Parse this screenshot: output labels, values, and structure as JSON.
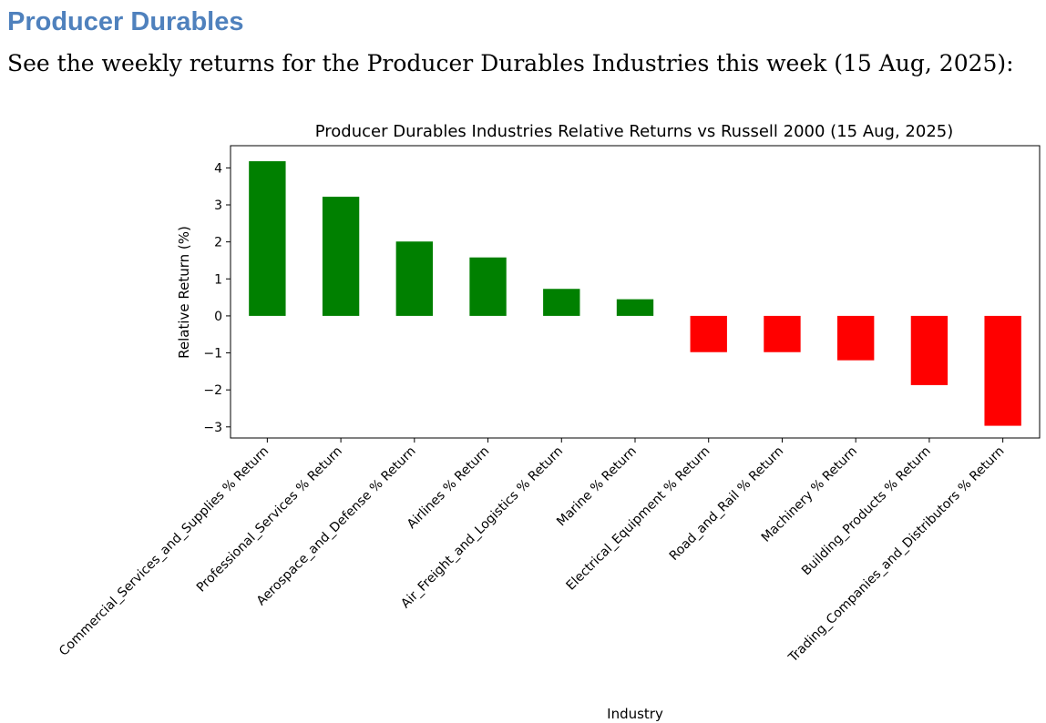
{
  "heading": "Producer Durables",
  "intro": "See the weekly returns for the Producer Durables Industries this week (15 Aug, 2025):",
  "colors": {
    "heading": "#4f81bd",
    "positive": "#008000",
    "negative": "#ff0000"
  },
  "chart_data": {
    "type": "bar",
    "title": "Producer Durables Industries Relative Returns vs Russell 2000 (15 Aug, 2025)",
    "xlabel": "Industry",
    "ylabel": "Relative Return (%)",
    "ylim": [
      -3.3,
      4.6
    ],
    "yticks": [
      -3,
      -2,
      -1,
      0,
      1,
      2,
      3,
      4
    ],
    "ytick_labels": [
      "−3",
      "−2",
      "−1",
      "0",
      "1",
      "2",
      "3",
      "4"
    ],
    "grid": false,
    "categories": [
      "Commercial_Services_and_Supplies % Return",
      "Professional_Services % Return",
      "Aerospace_and_Defense % Return",
      "Airlines % Return",
      "Air_Freight_and_Logistics % Return",
      "Marine % Return",
      "Electrical_Equipment % Return",
      "Road_and_Rail % Return",
      "Machinery % Return",
      "Building_Products % Return",
      "Trading_Companies_and_Distributors % Return"
    ],
    "values": [
      4.18,
      3.22,
      2.01,
      1.58,
      0.73,
      0.45,
      -0.98,
      -0.98,
      -1.2,
      -1.87,
      -2.97
    ]
  }
}
